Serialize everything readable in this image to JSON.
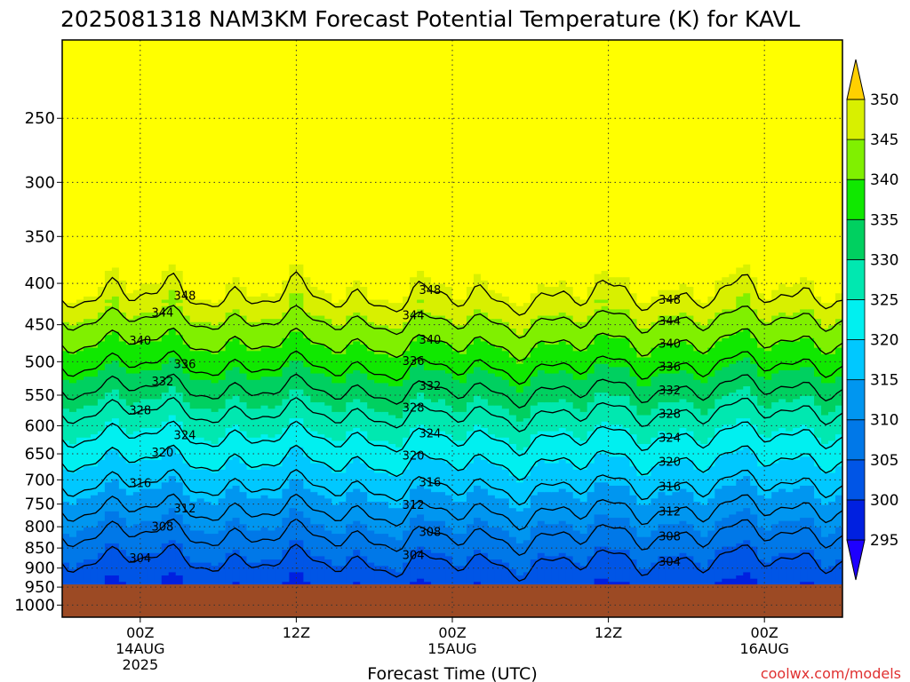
{
  "chart_data": {
    "type": "heatmap",
    "title": "2025081318 NAM3KM Forecast Potential Temperature (K) for KAVL",
    "xlabel": "Forecast Time (UTC)",
    "ylabel": "",
    "x_ticks": [
      {
        "hour": 6,
        "label1": "00Z",
        "label2": "14AUG",
        "label3": "2025"
      },
      {
        "hour": 18,
        "label1": "12Z",
        "label2": "",
        "label3": ""
      },
      {
        "hour": 30,
        "label1": "00Z",
        "label2": "15AUG",
        "label3": ""
      },
      {
        "hour": 42,
        "label1": "12Z",
        "label2": "",
        "label3": ""
      },
      {
        "hour": 54,
        "label1": "00Z",
        "label2": "16AUG",
        "label3": ""
      }
    ],
    "x_range_hours": [
      0,
      60
    ],
    "y_ticks": [
      250,
      300,
      350,
      400,
      450,
      500,
      550,
      600,
      650,
      700,
      750,
      800,
      850,
      900,
      950,
      1000
    ],
    "y_range_hpa": [
      200,
      1035
    ],
    "y_scale": "log-pressure",
    "surface_pressure_hpa": 943,
    "surface_color": "#9c4a24",
    "colorbar": {
      "ticks": [
        295,
        300,
        305,
        310,
        315,
        320,
        325,
        330,
        335,
        340,
        345,
        350
      ],
      "colors": [
        "#1e00ff",
        "#0020e0",
        "#0055e6",
        "#0078e8",
        "#0096f0",
        "#00c8ff",
        "#00f0f0",
        "#00e8b0",
        "#00d060",
        "#10e800",
        "#80f000",
        "#d8f000",
        "#ffff00",
        "#ffd000"
      ]
    },
    "contours": [
      {
        "value": 304,
        "label": "304"
      },
      {
        "value": 308,
        "label": "308"
      },
      {
        "value": 312,
        "label": "312"
      },
      {
        "value": 316,
        "label": "316"
      },
      {
        "value": 320,
        "label": "320"
      },
      {
        "value": 324,
        "label": "324"
      },
      {
        "value": 328,
        "label": "328"
      },
      {
        "value": 332,
        "label": "332"
      },
      {
        "value": 336,
        "label": "336"
      },
      {
        "value": 340,
        "label": "340"
      },
      {
        "value": 344,
        "label": "344"
      },
      {
        "value": 348,
        "label": "348"
      }
    ],
    "grid": true,
    "legend": "right"
  },
  "credit": "coolwx.com/models"
}
